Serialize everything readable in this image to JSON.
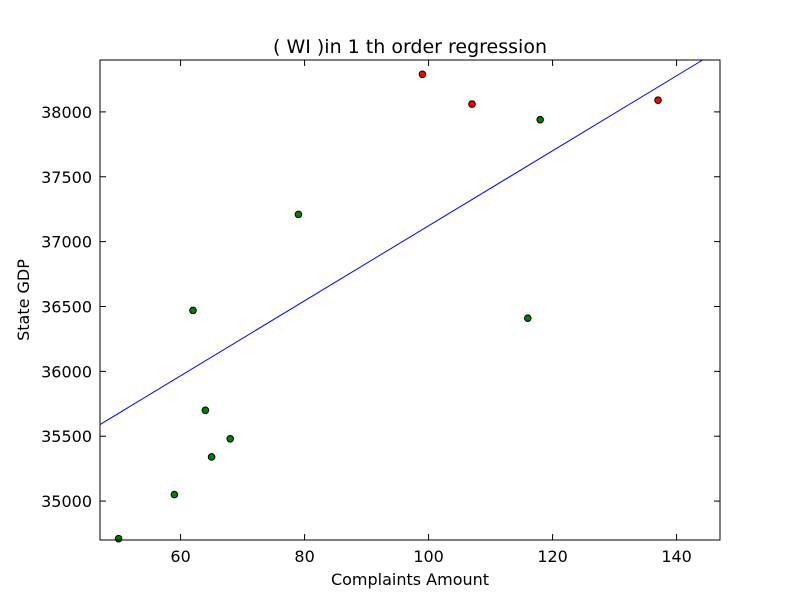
{
  "chart_data": {
    "type": "scatter",
    "title": "(  WI  )in 1 th order regression",
    "xlabel": "Complaints Amount",
    "ylabel": "State GDP",
    "xlim": [
      47,
      147
    ],
    "ylim": [
      34700,
      38400
    ],
    "xticks": [
      60,
      80,
      100,
      120,
      140
    ],
    "yticks": [
      35000,
      35500,
      36000,
      36500,
      37000,
      37500,
      38000
    ],
    "xtick_labels": [
      "60",
      "80",
      "100",
      "120",
      "140"
    ],
    "ytick_labels": [
      "35000",
      "35500",
      "36000",
      "36500",
      "37000",
      "37500",
      "38000"
    ],
    "grid": false,
    "series": [
      {
        "color": "#008000",
        "points": [
          {
            "x": 50,
            "y": 34710
          },
          {
            "x": 59,
            "y": 35050
          },
          {
            "x": 62,
            "y": 36470
          },
          {
            "x": 64,
            "y": 35700
          },
          {
            "x": 65,
            "y": 35340
          },
          {
            "x": 68,
            "y": 35480
          },
          {
            "x": 79,
            "y": 37210
          },
          {
            "x": 116,
            "y": 36410
          },
          {
            "x": 118,
            "y": 37940
          }
        ]
      },
      {
        "color": "#ff0000",
        "points": [
          {
            "x": 99,
            "y": 38290
          },
          {
            "x": 107,
            "y": 38060
          },
          {
            "x": 137,
            "y": 38090
          }
        ]
      }
    ],
    "regression_line": {
      "color": "#0000ff",
      "points": [
        {
          "x": 47,
          "y": 35590
        },
        {
          "x": 144.2,
          "y": 38400
        }
      ]
    }
  }
}
